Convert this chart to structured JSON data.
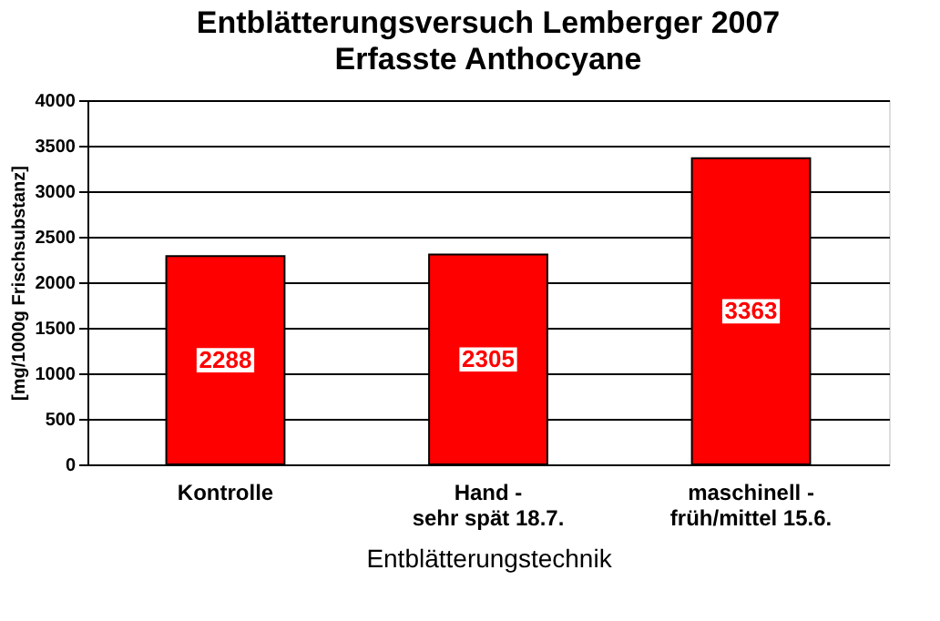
{
  "chart_data": {
    "type": "bar",
    "title": "Entblätterungsversuch Lemberger 2007",
    "subtitle": "Erfasste Anthocyane",
    "xlabel": "Entblätterungstechnik",
    "ylabel": "[mg/1000g Frischsubstanz]",
    "categories": [
      "Kontrolle",
      "Hand -\nsehr spät 18.7.",
      "maschinell -\nfrüh/mittel 15.6."
    ],
    "values": [
      2288,
      2305,
      3363
    ],
    "color": "#ff0000",
    "ylim": [
      0,
      4000
    ],
    "yticks": [
      0,
      500,
      1000,
      1500,
      2000,
      2500,
      3000,
      3500,
      4000
    ],
    "grid": "y",
    "data_labels": true
  }
}
